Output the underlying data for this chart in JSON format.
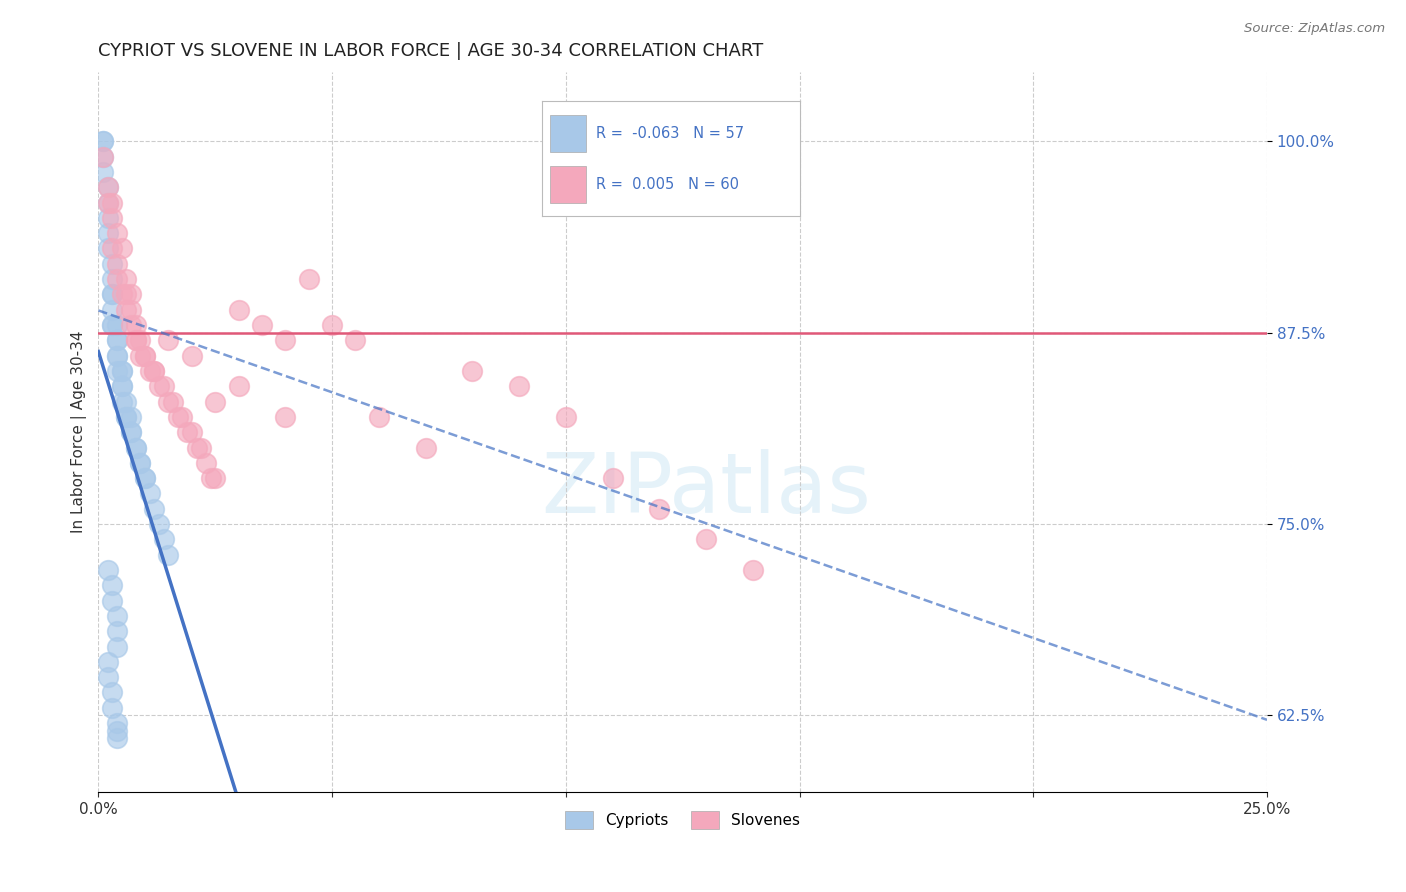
{
  "title": "CYPRIOT VS SLOVENE IN LABOR FORCE | AGE 30-34 CORRELATION CHART",
  "source": "Source: ZipAtlas.com",
  "ylabel": "In Labor Force | Age 30-34",
  "xlim": [
    0.0,
    0.25
  ],
  "ylim": [
    0.575,
    1.045
  ],
  "xticks": [
    0.0,
    0.05,
    0.1,
    0.15,
    0.2,
    0.25
  ],
  "xticklabels": [
    "0.0%",
    "",
    "",
    "",
    "",
    "25.0%"
  ],
  "yticks_right": [
    0.625,
    0.75,
    0.875,
    1.0
  ],
  "yticklabels_right": [
    "62.5%",
    "75.0%",
    "87.5%",
    "100.0%"
  ],
  "cypriot_R": -0.063,
  "cypriot_N": 57,
  "slovene_R": 0.005,
  "slovene_N": 60,
  "cypriot_color": "#a8c8e8",
  "slovene_color": "#f4a8bc",
  "cypriot_line_color": "#4472c4",
  "slovene_line_color": "#e05878",
  "cypriot_scatter_x": [
    0.001,
    0.001,
    0.001,
    0.001,
    0.002,
    0.002,
    0.002,
    0.002,
    0.002,
    0.003,
    0.003,
    0.003,
    0.003,
    0.003,
    0.003,
    0.003,
    0.004,
    0.004,
    0.004,
    0.004,
    0.004,
    0.004,
    0.005,
    0.005,
    0.005,
    0.005,
    0.005,
    0.006,
    0.006,
    0.006,
    0.007,
    0.007,
    0.007,
    0.008,
    0.008,
    0.009,
    0.009,
    0.01,
    0.01,
    0.011,
    0.012,
    0.013,
    0.014,
    0.015,
    0.002,
    0.003,
    0.003,
    0.004,
    0.004,
    0.004,
    0.002,
    0.002,
    0.003,
    0.003,
    0.004,
    0.004,
    0.004
  ],
  "cypriot_scatter_y": [
    1.0,
    1.0,
    0.99,
    0.98,
    0.97,
    0.96,
    0.95,
    0.94,
    0.93,
    0.92,
    0.91,
    0.9,
    0.9,
    0.89,
    0.88,
    0.88,
    0.88,
    0.87,
    0.87,
    0.86,
    0.86,
    0.85,
    0.85,
    0.85,
    0.84,
    0.84,
    0.83,
    0.83,
    0.82,
    0.82,
    0.82,
    0.81,
    0.81,
    0.8,
    0.8,
    0.79,
    0.79,
    0.78,
    0.78,
    0.77,
    0.76,
    0.75,
    0.74,
    0.73,
    0.72,
    0.71,
    0.7,
    0.69,
    0.68,
    0.67,
    0.66,
    0.65,
    0.64,
    0.63,
    0.62,
    0.615,
    0.61
  ],
  "slovene_scatter_x": [
    0.001,
    0.002,
    0.003,
    0.003,
    0.004,
    0.004,
    0.005,
    0.006,
    0.006,
    0.007,
    0.007,
    0.008,
    0.008,
    0.009,
    0.009,
    0.01,
    0.011,
    0.012,
    0.013,
    0.014,
    0.015,
    0.016,
    0.017,
    0.018,
    0.019,
    0.02,
    0.021,
    0.022,
    0.023,
    0.024,
    0.025,
    0.03,
    0.035,
    0.04,
    0.045,
    0.05,
    0.055,
    0.06,
    0.07,
    0.08,
    0.09,
    0.1,
    0.11,
    0.12,
    0.13,
    0.14,
    0.002,
    0.003,
    0.004,
    0.005,
    0.006,
    0.007,
    0.008,
    0.01,
    0.012,
    0.015,
    0.02,
    0.025,
    0.03,
    0.04
  ],
  "slovene_scatter_y": [
    0.99,
    0.97,
    0.96,
    0.95,
    0.94,
    0.92,
    0.93,
    0.91,
    0.9,
    0.9,
    0.89,
    0.88,
    0.87,
    0.87,
    0.86,
    0.86,
    0.85,
    0.85,
    0.84,
    0.84,
    0.83,
    0.83,
    0.82,
    0.82,
    0.81,
    0.81,
    0.8,
    0.8,
    0.79,
    0.78,
    0.78,
    0.89,
    0.88,
    0.87,
    0.91,
    0.88,
    0.87,
    0.82,
    0.8,
    0.85,
    0.84,
    0.82,
    0.78,
    0.76,
    0.74,
    0.72,
    0.96,
    0.93,
    0.91,
    0.9,
    0.89,
    0.88,
    0.87,
    0.86,
    0.85,
    0.87,
    0.86,
    0.83,
    0.84,
    0.82
  ],
  "background_color": "#ffffff",
  "grid_color": "#cccccc",
  "title_fontsize": 13,
  "axis_label_fontsize": 11,
  "tick_fontsize": 11,
  "watermark_text": "ZIPatlas",
  "watermark_color": "#d0e8f5"
}
